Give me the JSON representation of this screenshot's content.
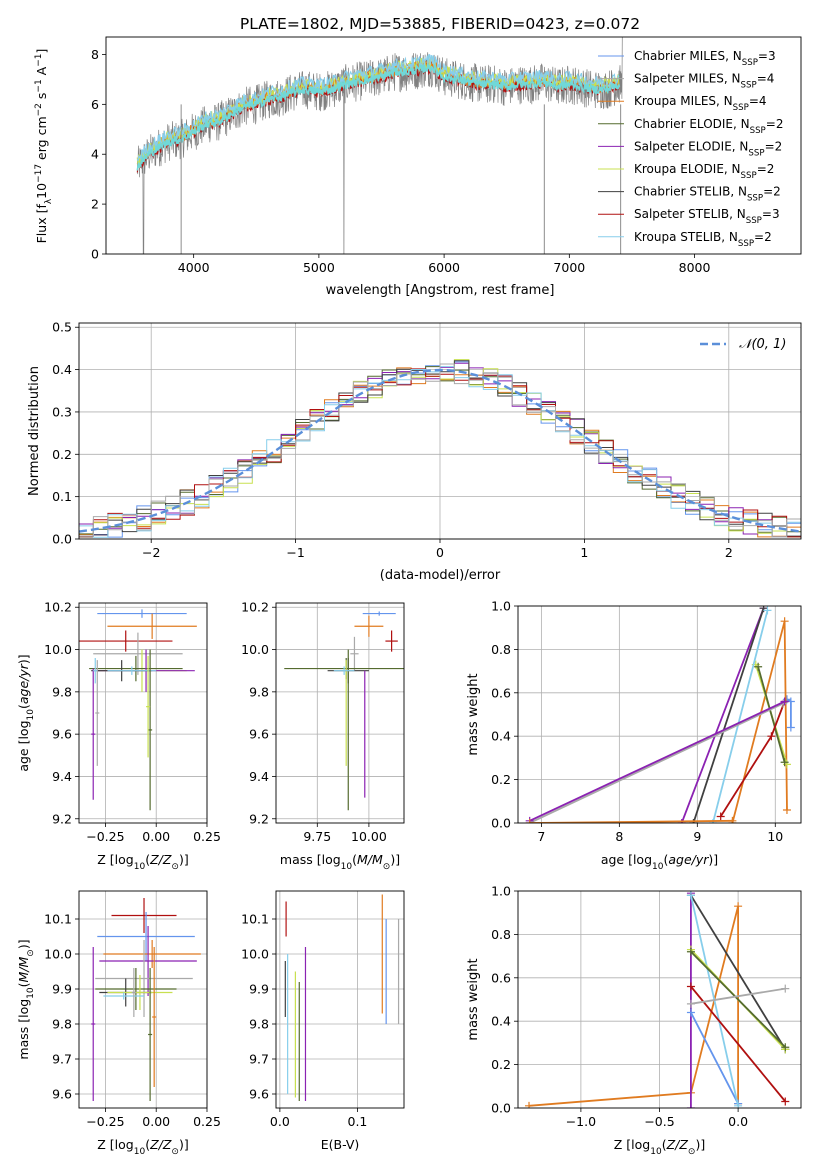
{
  "figure": {
    "title": "PLATE=1802, MJD=53885, FIBERID=0423, z=0.072"
  },
  "legend": [
    {
      "label": "Chabrier MILES, N",
      "sub": "SSP",
      "tail": "=3",
      "color": "#6495ED"
    },
    {
      "label": "Salpeter MILES, N",
      "sub": "SSP",
      "tail": "=4",
      "color": "#A9A9A9"
    },
    {
      "label": "Kroupa MILES, N",
      "sub": "SSP",
      "tail": "=4",
      "color": "#E07B20"
    },
    {
      "label": "Chabrier ELODIE, N",
      "sub": "SSP",
      "tail": "=2",
      "color": "#556B2F"
    },
    {
      "label": "Salpeter ELODIE, N",
      "sub": "SSP",
      "tail": "=2",
      "color": "#8B22B2"
    },
    {
      "label": "Kroupa ELODIE, N",
      "sub": "SSP",
      "tail": "=2",
      "color": "#C8E050"
    },
    {
      "label": "Chabrier STELIB, N",
      "sub": "SSP",
      "tail": "=2",
      "color": "#404040"
    },
    {
      "label": "Salpeter STELIB, N",
      "sub": "SSP",
      "tail": "=3",
      "color": "#B01010"
    },
    {
      "label": "Kroupa STELIB, N",
      "sub": "SSP",
      "tail": "=2",
      "color": "#87CEEB"
    }
  ],
  "chart_data": [
    {
      "id": "spectrum",
      "type": "line",
      "xlabel": "wavelength [Angstrom, rest frame]",
      "ylabel": "Flux [f_λ 10^-17 erg cm^-2 s^-1 A^-1]",
      "xlim": [
        3300,
        8850
      ],
      "ylim": [
        0,
        8.7
      ],
      "xticks": [
        "4000",
        "5000",
        "6000",
        "7000",
        "8000"
      ],
      "yticks": [
        "0",
        "2",
        "4",
        "6",
        "8"
      ],
      "data_color": "#808080",
      "model_color": "#70D8D8",
      "continuum": {
        "x": [
          3550,
          3620,
          3700,
          3800,
          3900,
          4000,
          4100,
          4200,
          4300,
          4400,
          4500,
          4600,
          4700,
          4800,
          4900,
          5000,
          5100,
          5200,
          5300,
          5400,
          5500,
          5600,
          5700,
          5800,
          5900,
          6000,
          6100,
          6200,
          6300,
          6400,
          6500,
          6600,
          6700,
          6800,
          6900,
          7000,
          7100,
          7200,
          7300,
          7400
        ],
        "y": [
          3.5,
          3.9,
          4.2,
          4.5,
          4.6,
          4.9,
          5.2,
          5.3,
          5.6,
          5.9,
          6.0,
          6.2,
          6.3,
          6.5,
          6.6,
          6.5,
          6.6,
          6.8,
          6.9,
          7.0,
          7.1,
          7.3,
          7.3,
          7.4,
          7.5,
          7.1,
          7.0,
          6.9,
          6.8,
          6.8,
          6.7,
          6.8,
          6.8,
          6.9,
          6.7,
          6.8,
          6.7,
          6.6,
          6.6,
          6.8
        ]
      }
    },
    {
      "id": "residuals",
      "type": "line",
      "xlabel": "(data-model)/error",
      "ylabel": "Normed distribution",
      "xlim": [
        -2.5,
        2.5
      ],
      "ylim": [
        0,
        0.51
      ],
      "xticks": [
        "−2",
        "−1",
        "0",
        "1",
        "2"
      ],
      "yticks": [
        "0.0",
        "0.1",
        "0.2",
        "0.3",
        "0.4",
        "0.5"
      ],
      "gaussian_label": "𝒩(0, 1)",
      "gaussian_color": "#5B8FD9"
    },
    {
      "id": "age_vs_Z",
      "type": "scatter",
      "xlabel": "Z [log10(Z/Z⊙)]",
      "ylabel": "age  [log10(age/yr)]",
      "xlim": [
        -0.38,
        0.25
      ],
      "ylim": [
        9.18,
        10.22
      ],
      "xticks": [
        "−0.25",
        "0.00",
        "0.25"
      ],
      "yticks": [
        "9.2",
        "9.4",
        "9.6",
        "9.8",
        "10.0",
        "10.2"
      ],
      "points": [
        {
          "series": 0,
          "x": -0.07,
          "y": 10.17,
          "xerr": 0.22,
          "yerr": 0.02
        },
        {
          "series": 2,
          "x": -0.02,
          "y": 10.11,
          "xerr": 0.22,
          "yerr": 0.06
        },
        {
          "series": 7,
          "x": -0.15,
          "y": 10.04,
          "xerr": 0.23,
          "yerr": 0.05
        },
        {
          "series": 1,
          "x": -0.09,
          "y": 9.98,
          "xerr": 0.22,
          "yerr": 0.1
        },
        {
          "series": 5,
          "x": -0.07,
          "y": 9.9,
          "xerr": 0.22,
          "yerr": 0.1
        },
        {
          "series": 3,
          "x": -0.1,
          "y": 9.91,
          "xerr": 0.23,
          "yerr": 0.06
        },
        {
          "series": 4,
          "x": -0.05,
          "y": 9.9,
          "xerr": 0.24,
          "yerr": 0.1
        },
        {
          "series": 6,
          "x": -0.17,
          "y": 9.9,
          "xerr": 0.15,
          "yerr": 0.05
        },
        {
          "series": 8,
          "x": -0.12,
          "y": 9.9,
          "xerr": 0.12,
          "yerr": 0.02
        },
        {
          "series": 4,
          "x": -0.31,
          "y": 9.6,
          "xerr": 0.01,
          "yerr": 0.31
        },
        {
          "series": 3,
          "x": -0.03,
          "y": 9.62,
          "xerr": 0.01,
          "yerr": 0.38
        },
        {
          "series": 5,
          "x": -0.04,
          "y": 9.73,
          "xerr": 0.01,
          "yerr": 0.24
        },
        {
          "series": 1,
          "x": -0.29,
          "y": 9.7,
          "xerr": 0.01,
          "yerr": 0.25
        },
        {
          "series": 8,
          "x": -0.3,
          "y": 9.9,
          "xerr": 0.01,
          "yerr": 0.06
        }
      ]
    },
    {
      "id": "age_vs_mass",
      "type": "scatter",
      "xlabel": "mass [log10(M/M⊙)]",
      "ylabel": "",
      "xlim": [
        9.55,
        10.17
      ],
      "ylim": [
        9.18,
        10.22
      ],
      "xticks": [
        "9.75",
        "10.00"
      ],
      "yticks": [
        "9.2",
        "9.4",
        "9.6",
        "9.8",
        "10.0",
        "10.2"
      ],
      "points": [
        {
          "series": 0,
          "x": 10.05,
          "y": 10.17,
          "xerr": 0.08,
          "yerr": 0.01
        },
        {
          "series": 2,
          "x": 10.0,
          "y": 10.11,
          "xerr": 0.07,
          "yerr": 0.05
        },
        {
          "series": 7,
          "x": 10.11,
          "y": 10.04,
          "xerr": 0.03,
          "yerr": 0.05
        },
        {
          "series": 1,
          "x": 9.93,
          "y": 9.98,
          "xerr": 0.02,
          "yerr": 0.08
        },
        {
          "series": 3,
          "x": 9.89,
          "y": 9.91,
          "xerr": 0.3,
          "yerr": 0.05
        },
        {
          "series": 6,
          "x": 9.9,
          "y": 9.9,
          "xerr": 0.1,
          "yerr": 0.06
        },
        {
          "series": 4,
          "x": 9.98,
          "y": 9.6,
          "xerr": 0.0,
          "yerr": 0.3
        },
        {
          "series": 5,
          "x": 9.89,
          "y": 9.7,
          "xerr": 0.0,
          "yerr": 0.25
        },
        {
          "series": 3,
          "x": 9.9,
          "y": 9.62,
          "xerr": 0.0,
          "yerr": 0.38
        },
        {
          "series": 8,
          "x": 9.88,
          "y": 9.9,
          "xerr": 0.05,
          "yerr": 0.02
        }
      ]
    },
    {
      "id": "weight_vs_age",
      "type": "line",
      "xlabel": "age  [log10(age/yr)]",
      "ylabel": "mass weight",
      "xlim": [
        6.7,
        10.33
      ],
      "ylim": [
        0,
        1
      ],
      "xticks": [
        "7",
        "8",
        "9",
        "10"
      ],
      "yticks": [
        "0.0",
        "0.2",
        "0.4",
        "0.6",
        "0.8",
        "1.0"
      ],
      "series": [
        {
          "series": 0,
          "x": [
            10.15,
            10.2,
            10.2
          ],
          "y": [
            0.57,
            0.56,
            0.44
          ]
        },
        {
          "series": 2,
          "x": [
            9.45,
            10.12,
            10.15
          ],
          "y": [
            0.0,
            0.93,
            0.06
          ]
        },
        {
          "series": 4,
          "x": [
            8.8,
            9.85
          ],
          "y": [
            0.0,
            0.99
          ]
        },
        {
          "series": 5,
          "x": [
            9.75,
            10.15
          ],
          "y": [
            0.73,
            0.27
          ]
        },
        {
          "series": 3,
          "x": [
            9.78,
            10.12
          ],
          "y": [
            0.72,
            0.28
          ]
        },
        {
          "series": 6,
          "x": [
            8.95,
            9.85
          ],
          "y": [
            0.0,
            0.99
          ]
        },
        {
          "series": 7,
          "x": [
            9.3,
            9.95,
            10.12
          ],
          "y": [
            0.03,
            0.4,
            0.56
          ]
        },
        {
          "series": 8,
          "x": [
            9.2,
            9.9
          ],
          "y": [
            0.0,
            0.98
          ]
        },
        {
          "series": 1,
          "x": [
            6.85,
            10.1
          ],
          "y": [
            0.0,
            0.55
          ]
        },
        {
          "series": 4,
          "x": [
            6.85,
            10.12
          ],
          "y": [
            0.01,
            0.56
          ]
        },
        {
          "series": 2,
          "x": [
            6.85,
            9.45
          ],
          "y": [
            0.0,
            0.01
          ]
        }
      ]
    },
    {
      "id": "mass_vs_Z",
      "type": "scatter",
      "xlabel": "Z [log10(Z/Z⊙)]",
      "ylabel": "mass [log10(M/M⊙)]",
      "xlim": [
        -0.38,
        0.25
      ],
      "ylim": [
        9.56,
        10.18
      ],
      "xticks": [
        "−0.25",
        "0.00",
        "0.25"
      ],
      "yticks": [
        "9.6",
        "9.7",
        "9.8",
        "9.9",
        "10.0",
        "10.1"
      ],
      "points": [
        {
          "series": 7,
          "x": -0.06,
          "y": 10.11,
          "xerr": 0.16,
          "yerr": 0.05
        },
        {
          "series": 0,
          "x": -0.05,
          "y": 10.05,
          "xerr": 0.24,
          "yerr": 0.07
        },
        {
          "series": 2,
          "x": -0.02,
          "y": 10.0,
          "xerr": 0.24,
          "yerr": 0.04
        },
        {
          "series": 4,
          "x": -0.04,
          "y": 9.98,
          "xerr": 0.24,
          "yerr": 0.1
        },
        {
          "series": 1,
          "x": -0.06,
          "y": 9.93,
          "xerr": 0.24,
          "yerr": 0.11
        },
        {
          "series": 3,
          "x": -0.1,
          "y": 9.9,
          "xerr": 0.2,
          "yerr": 0.06
        },
        {
          "series": 6,
          "x": -0.15,
          "y": 9.89,
          "xerr": 0.13,
          "yerr": 0.04
        },
        {
          "series": 5,
          "x": -0.08,
          "y": 9.89,
          "xerr": 0.16,
          "yerr": 0.05
        },
        {
          "series": 8,
          "x": -0.16,
          "y": 9.88,
          "xerr": 0.1,
          "yerr": 0.01
        },
        {
          "series": 4,
          "x": -0.31,
          "y": 9.8,
          "xerr": 0.01,
          "yerr": 0.22
        },
        {
          "series": 3,
          "x": -0.03,
          "y": 9.77,
          "xerr": 0.01,
          "yerr": 0.19
        },
        {
          "series": 1,
          "x": -0.11,
          "y": 9.89,
          "xerr": 0.01,
          "yerr": 0.07
        },
        {
          "series": 2,
          "x": -0.01,
          "y": 9.82,
          "xerr": 0.01,
          "yerr": 0.2
        }
      ]
    },
    {
      "id": "mass_vs_ebv",
      "type": "scatter",
      "xlabel": "E(B-V)",
      "ylabel": "",
      "xlim": [
        -0.005,
        0.16
      ],
      "ylim": [
        9.56,
        10.18
      ],
      "xticks": [
        "0.0",
        "0.1"
      ],
      "yticks": [
        "9.6",
        "9.7",
        "9.8",
        "9.9",
        "10.0",
        "10.1"
      ],
      "points": [
        {
          "series": 7,
          "x": 0.008,
          "y": 10.1,
          "xerr": 0.0,
          "yerr": 0.05
        },
        {
          "series": 6,
          "x": 0.007,
          "y": 9.9,
          "xerr": 0.0,
          "yerr": 0.08
        },
        {
          "series": 8,
          "x": 0.01,
          "y": 9.8,
          "xerr": 0.0,
          "yerr": 0.2
        },
        {
          "series": 5,
          "x": 0.02,
          "y": 9.77,
          "xerr": 0.0,
          "yerr": 0.18
        },
        {
          "series": 3,
          "x": 0.025,
          "y": 9.75,
          "xerr": 0.0,
          "yerr": 0.17
        },
        {
          "series": 4,
          "x": 0.033,
          "y": 9.8,
          "xerr": 0.0,
          "yerr": 0.22
        },
        {
          "series": 2,
          "x": 0.132,
          "y": 10.0,
          "xerr": 0.0,
          "yerr": 0.17
        },
        {
          "series": 0,
          "x": 0.137,
          "y": 9.95,
          "xerr": 0.0,
          "yerr": 0.15
        },
        {
          "series": 1,
          "x": 0.153,
          "y": 9.95,
          "xerr": 0.0,
          "yerr": 0.15
        }
      ]
    },
    {
      "id": "weight_vs_Z",
      "type": "line",
      "xlabel": "Z [log10(Z/Z⊙)]",
      "ylabel": "mass weight",
      "xlim": [
        -1.4,
        0.4
      ],
      "ylim": [
        0,
        1
      ],
      "xticks": [
        "−1.0",
        "−0.5",
        "0.0"
      ],
      "yticks": [
        "0.0",
        "0.2",
        "0.4",
        "0.6",
        "0.8",
        "1.0"
      ],
      "series": [
        {
          "series": 2,
          "x": [
            -1.33,
            -0.3,
            0.0,
            0.0
          ],
          "y": [
            0.01,
            0.07,
            0.93,
            0.02
          ]
        },
        {
          "series": 4,
          "x": [
            -0.3,
            -0.3
          ],
          "y": [
            0.0,
            0.99
          ]
        },
        {
          "series": 0,
          "x": [
            -0.3,
            0.0
          ],
          "y": [
            0.44,
            0.02
          ]
        },
        {
          "series": 6,
          "x": [
            -0.3,
            0.3
          ],
          "y": [
            0.98,
            0.27
          ]
        },
        {
          "series": 8,
          "x": [
            -0.3,
            0.0
          ],
          "y": [
            0.98,
            0.01
          ]
        },
        {
          "series": 7,
          "x": [
            -0.3,
            0.3
          ],
          "y": [
            0.56,
            0.03
          ]
        },
        {
          "series": 5,
          "x": [
            -0.3,
            0.3
          ],
          "y": [
            0.73,
            0.27
          ]
        },
        {
          "series": 3,
          "x": [
            -0.3,
            0.3
          ],
          "y": [
            0.72,
            0.28
          ]
        },
        {
          "series": 1,
          "x": [
            -0.3,
            0.3
          ],
          "y": [
            0.48,
            0.55
          ]
        }
      ]
    }
  ]
}
